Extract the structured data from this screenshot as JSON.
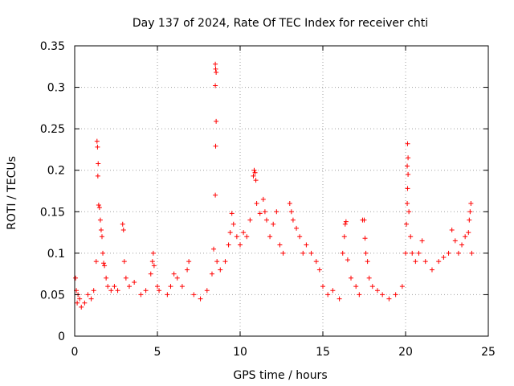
{
  "chart_data": {
    "type": "scatter",
    "title": "Day 137 of 2024, Rate Of TEC Index for receiver chti",
    "xlabel": "GPS time / hours",
    "ylabel": "ROTI / TECUs",
    "xlim": [
      0,
      25
    ],
    "ylim": [
      0,
      0.35
    ],
    "x_ticks": [
      0,
      5,
      10,
      15,
      20,
      25
    ],
    "x_tick_labels": [
      "0",
      "5",
      "10",
      "15",
      "20",
      "25"
    ],
    "y_ticks": [
      0,
      0.05,
      0.1,
      0.15,
      0.2,
      0.25,
      0.3,
      0.35
    ],
    "y_tick_labels": [
      "0",
      "0.05",
      "0.1",
      "0.15",
      "0.2",
      "0.25",
      "0.3",
      "0.35"
    ],
    "grid": true,
    "marker": "+",
    "color": "#ff0000",
    "series": [
      {
        "points": [
          [
            0.05,
            0.07
          ],
          [
            0.1,
            0.055
          ],
          [
            0.15,
            0.04
          ],
          [
            0.2,
            0.05
          ],
          [
            0.3,
            0.045
          ],
          [
            0.4,
            0.035
          ],
          [
            0.6,
            0.04
          ],
          [
            0.8,
            0.05
          ],
          [
            1.0,
            0.045
          ],
          [
            1.15,
            0.055
          ],
          [
            1.3,
            0.09
          ],
          [
            1.35,
            0.235
          ],
          [
            1.38,
            0.228
          ],
          [
            1.42,
            0.208
          ],
          [
            1.4,
            0.193
          ],
          [
            1.45,
            0.158
          ],
          [
            1.5,
            0.155
          ],
          [
            1.55,
            0.14
          ],
          [
            1.6,
            0.128
          ],
          [
            1.65,
            0.12
          ],
          [
            1.7,
            0.1
          ],
          [
            1.75,
            0.088
          ],
          [
            1.8,
            0.085
          ],
          [
            1.9,
            0.07
          ],
          [
            2.0,
            0.06
          ],
          [
            2.2,
            0.055
          ],
          [
            2.4,
            0.06
          ],
          [
            2.6,
            0.055
          ],
          [
            2.9,
            0.135
          ],
          [
            2.95,
            0.128
          ],
          [
            3.0,
            0.09
          ],
          [
            3.1,
            0.07
          ],
          [
            3.3,
            0.06
          ],
          [
            3.6,
            0.065
          ],
          [
            4.0,
            0.05
          ],
          [
            4.3,
            0.055
          ],
          [
            4.6,
            0.075
          ],
          [
            4.7,
            0.09
          ],
          [
            4.75,
            0.1
          ],
          [
            4.8,
            0.085
          ],
          [
            5.0,
            0.06
          ],
          [
            5.1,
            0.055
          ],
          [
            5.6,
            0.05
          ],
          [
            5.8,
            0.06
          ],
          [
            6.0,
            0.075
          ],
          [
            6.2,
            0.07
          ],
          [
            6.5,
            0.06
          ],
          [
            6.8,
            0.08
          ],
          [
            6.9,
            0.09
          ],
          [
            7.2,
            0.05
          ],
          [
            7.6,
            0.045
          ],
          [
            8.0,
            0.055
          ],
          [
            8.3,
            0.075
          ],
          [
            8.4,
            0.105
          ],
          [
            8.5,
            0.17
          ],
          [
            8.52,
            0.229
          ],
          [
            8.55,
            0.259
          ],
          [
            8.5,
            0.302
          ],
          [
            8.55,
            0.318
          ],
          [
            8.52,
            0.322
          ],
          [
            8.5,
            0.328
          ],
          [
            8.6,
            0.09
          ],
          [
            8.8,
            0.08
          ],
          [
            9.1,
            0.09
          ],
          [
            9.3,
            0.11
          ],
          [
            9.4,
            0.125
          ],
          [
            9.5,
            0.148
          ],
          [
            9.6,
            0.135
          ],
          [
            9.8,
            0.12
          ],
          [
            10.0,
            0.11
          ],
          [
            10.2,
            0.125
          ],
          [
            10.4,
            0.12
          ],
          [
            10.6,
            0.14
          ],
          [
            10.8,
            0.193
          ],
          [
            10.85,
            0.2
          ],
          [
            10.9,
            0.197
          ],
          [
            10.95,
            0.188
          ],
          [
            11.0,
            0.16
          ],
          [
            11.2,
            0.148
          ],
          [
            11.4,
            0.165
          ],
          [
            11.5,
            0.15
          ],
          [
            11.6,
            0.14
          ],
          [
            11.8,
            0.12
          ],
          [
            12.0,
            0.135
          ],
          [
            12.2,
            0.15
          ],
          [
            12.4,
            0.11
          ],
          [
            12.6,
            0.1
          ],
          [
            13.0,
            0.16
          ],
          [
            13.1,
            0.15
          ],
          [
            13.2,
            0.14
          ],
          [
            13.4,
            0.13
          ],
          [
            13.6,
            0.12
          ],
          [
            13.8,
            0.1
          ],
          [
            14.0,
            0.11
          ],
          [
            14.3,
            0.1
          ],
          [
            14.6,
            0.09
          ],
          [
            14.8,
            0.08
          ],
          [
            15.0,
            0.06
          ],
          [
            15.3,
            0.05
          ],
          [
            15.6,
            0.055
          ],
          [
            16.0,
            0.045
          ],
          [
            16.2,
            0.1
          ],
          [
            16.3,
            0.12
          ],
          [
            16.35,
            0.135
          ],
          [
            16.4,
            0.138
          ],
          [
            16.5,
            0.092
          ],
          [
            16.7,
            0.07
          ],
          [
            17.0,
            0.06
          ],
          [
            17.2,
            0.05
          ],
          [
            17.4,
            0.14
          ],
          [
            17.5,
            0.14
          ],
          [
            17.55,
            0.118
          ],
          [
            17.6,
            0.1
          ],
          [
            17.7,
            0.09
          ],
          [
            17.8,
            0.07
          ],
          [
            18.0,
            0.06
          ],
          [
            18.3,
            0.055
          ],
          [
            18.6,
            0.05
          ],
          [
            19.0,
            0.045
          ],
          [
            19.4,
            0.05
          ],
          [
            19.8,
            0.06
          ],
          [
            20.0,
            0.1
          ],
          [
            20.05,
            0.135
          ],
          [
            20.1,
            0.16
          ],
          [
            20.12,
            0.178
          ],
          [
            20.15,
            0.195
          ],
          [
            20.1,
            0.205
          ],
          [
            20.15,
            0.215
          ],
          [
            20.12,
            0.232
          ],
          [
            20.2,
            0.15
          ],
          [
            20.3,
            0.12
          ],
          [
            20.4,
            0.1
          ],
          [
            20.6,
            0.09
          ],
          [
            20.8,
            0.1
          ],
          [
            21.0,
            0.115
          ],
          [
            21.2,
            0.09
          ],
          [
            21.6,
            0.08
          ],
          [
            22.0,
            0.09
          ],
          [
            22.3,
            0.095
          ],
          [
            22.6,
            0.1
          ],
          [
            22.8,
            0.128
          ],
          [
            23.0,
            0.115
          ],
          [
            23.2,
            0.1
          ],
          [
            23.4,
            0.11
          ],
          [
            23.6,
            0.12
          ],
          [
            23.8,
            0.125
          ],
          [
            23.85,
            0.14
          ],
          [
            23.9,
            0.15
          ],
          [
            23.95,
            0.16
          ],
          [
            24.0,
            0.1
          ]
        ]
      }
    ]
  }
}
